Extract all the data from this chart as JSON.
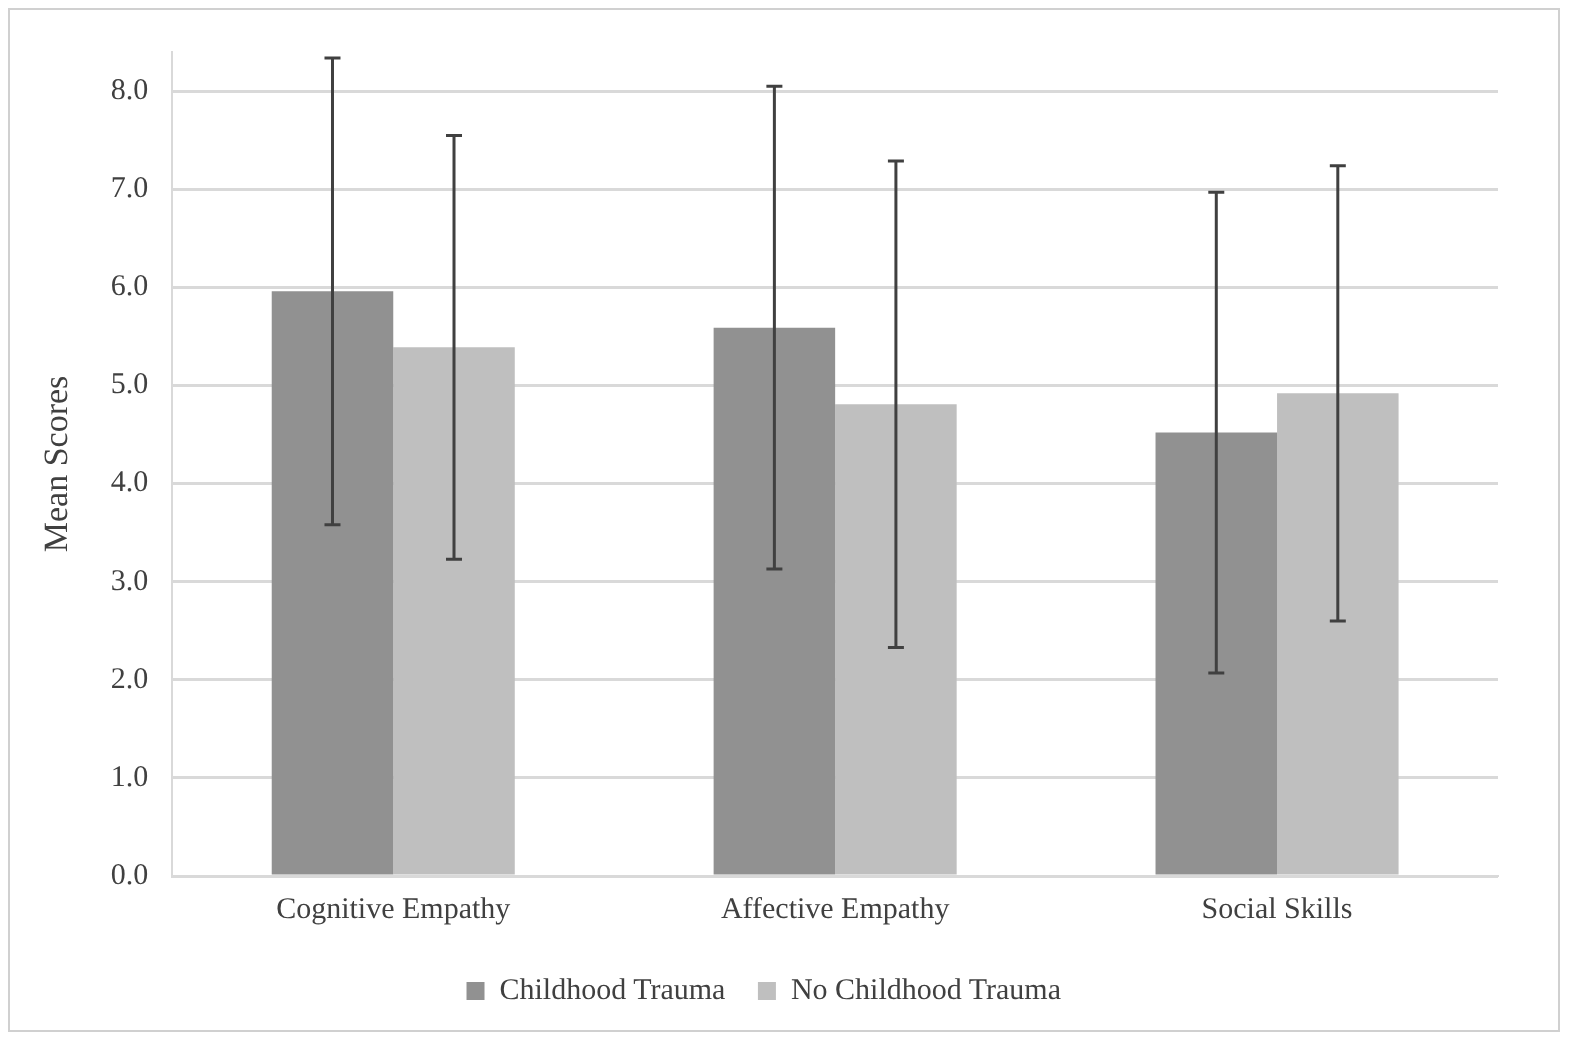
{
  "chart_data": {
    "type": "bar",
    "ylabel": "Mean Scores",
    "categories": [
      "Cognitive Empathy",
      "Affective Empathy",
      "Social Skills"
    ],
    "series": [
      {
        "name": "Childhood Trauma",
        "color": "#919191",
        "values": [
          5.96,
          5.59,
          4.52
        ],
        "errors": [
          2.38,
          2.46,
          2.45
        ]
      },
      {
        "name": "No Childhood Trauma",
        "color": "#bfbfbf",
        "values": [
          5.39,
          4.81,
          4.92
        ],
        "errors": [
          2.16,
          2.48,
          2.32
        ]
      }
    ],
    "ylim": [
      0,
      8.4
    ],
    "yticks": [
      {
        "value": 0,
        "label": "0.0"
      },
      {
        "value": 1,
        "label": "1.0"
      },
      {
        "value": 2,
        "label": "2.0"
      },
      {
        "value": 3,
        "label": "3.0"
      },
      {
        "value": 4,
        "label": "4.0"
      },
      {
        "value": 5,
        "label": "5.0"
      },
      {
        "value": 6,
        "label": "6.0"
      },
      {
        "value": 7,
        "label": "7.0"
      },
      {
        "value": 8,
        "label": "8.0"
      }
    ],
    "grid": "y",
    "legend": "bottom"
  }
}
